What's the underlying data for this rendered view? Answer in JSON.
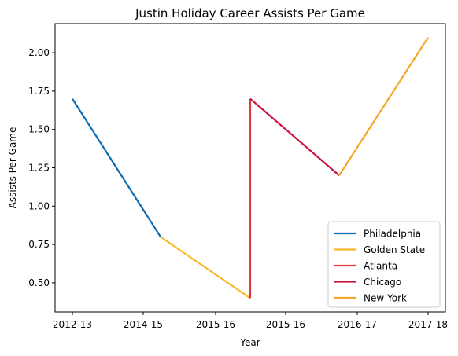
{
  "chart_data": {
    "type": "line",
    "title": "Justin Holiday Career Assists Per Game",
    "xlabel": "Year",
    "ylabel": "Assists Per Game",
    "x_ticks": [
      "2012-13",
      "2014-15",
      "2015-16",
      "2015-16",
      "2016-17",
      "2017-18"
    ],
    "ylim": [
      0.31,
      2.19
    ],
    "y_ticks": [
      "0.50",
      "0.75",
      "1.00",
      "1.25",
      "1.50",
      "1.75",
      "2.00"
    ],
    "grid": false,
    "legend_position": "lower right",
    "series": [
      {
        "name": "Philadelphia",
        "color": "#0a6bb5",
        "points": [
          [
            "2012-13",
            1.7
          ],
          [
            "2014-15",
            0.8
          ]
        ]
      },
      {
        "name": "Golden State",
        "color": "#fbb829",
        "points": [
          [
            "2014-15",
            0.8
          ],
          [
            "2015-16",
            0.4
          ]
        ]
      },
      {
        "name": "Atlanta",
        "color": "#e03a3e",
        "points": [
          [
            "2015-16",
            0.4
          ],
          [
            "2015-16",
            1.7
          ]
        ]
      },
      {
        "name": "Chicago",
        "color": "#ce1141",
        "points": [
          [
            "2015-16",
            1.7
          ],
          [
            "2016-17",
            1.2
          ]
        ]
      },
      {
        "name": "New York",
        "color": "#f5a623",
        "points": [
          [
            "2016-17",
            1.2
          ],
          [
            "2017-18",
            2.1
          ]
        ]
      }
    ]
  }
}
